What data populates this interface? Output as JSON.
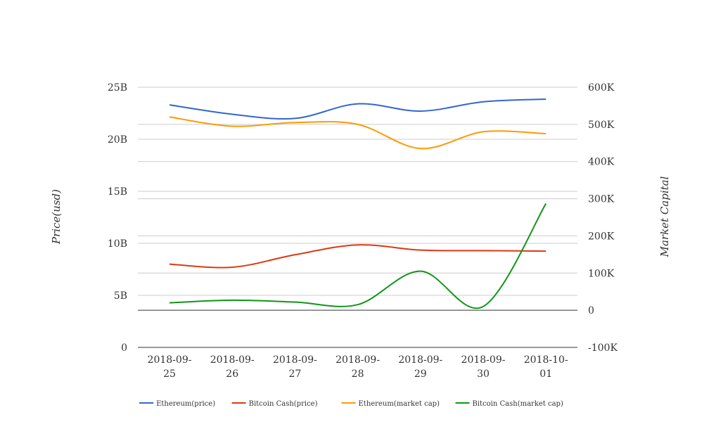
{
  "chart_data": {
    "type": "line",
    "title": "",
    "x": [
      "2018-09-25",
      "2018-09-26",
      "2018-09-27",
      "2018-09-28",
      "2018-09-29",
      "2018-09-30",
      "2018-10-01"
    ],
    "x_tick_labels": [
      [
        "2018-09-",
        "25"
      ],
      [
        "2018-09-",
        "26"
      ],
      [
        "2018-09-",
        "27"
      ],
      [
        "2018-09-",
        "28"
      ],
      [
        "2018-09-",
        "29"
      ],
      [
        "2018-09-",
        "30"
      ],
      [
        "2018-10-",
        "01"
      ]
    ],
    "ylabel_left": "Price(usd)",
    "ylabel_right": "Market Capital",
    "ylim_left": [
      0,
      25000000000
    ],
    "ylim_right": [
      -100000,
      600000
    ],
    "yticks_left": [
      0,
      5000000000,
      10000000000,
      15000000000,
      20000000000,
      25000000000
    ],
    "yticks_left_labels": [
      "0",
      "5B",
      "10B",
      "15B",
      "20B",
      "25B"
    ],
    "yticks_right": [
      -100000,
      0,
      100000,
      200000,
      300000,
      400000,
      500000,
      600000
    ],
    "yticks_right_labels": [
      "-100K",
      "0",
      "100K",
      "200K",
      "300K",
      "400K",
      "500K",
      "600K"
    ],
    "grid": true,
    "legend_position": "bottom",
    "series": [
      {
        "name": "Ethereum(price)",
        "axis": "left",
        "color": "#3366cc",
        "values": [
          23300000000,
          22400000000,
          22000000000,
          23400000000,
          22700000000,
          23600000000,
          23850000000
        ]
      },
      {
        "name": "Bitcoin Cash(price)",
        "axis": "left",
        "color": "#dc3912",
        "values": [
          8000000000,
          7700000000,
          8900000000,
          9850000000,
          9350000000,
          9300000000,
          9250000000
        ]
      },
      {
        "name": "Ethereum(market cap)",
        "axis": "right",
        "color": "#ff9900",
        "values": [
          520000,
          495000,
          505000,
          500000,
          435000,
          480000,
          475000
        ]
      },
      {
        "name": "Bitcoin Cash(market cap)",
        "axis": "right",
        "color": "#109618",
        "values": [
          20000,
          27000,
          22000,
          15000,
          105000,
          10000,
          287000
        ]
      }
    ]
  }
}
